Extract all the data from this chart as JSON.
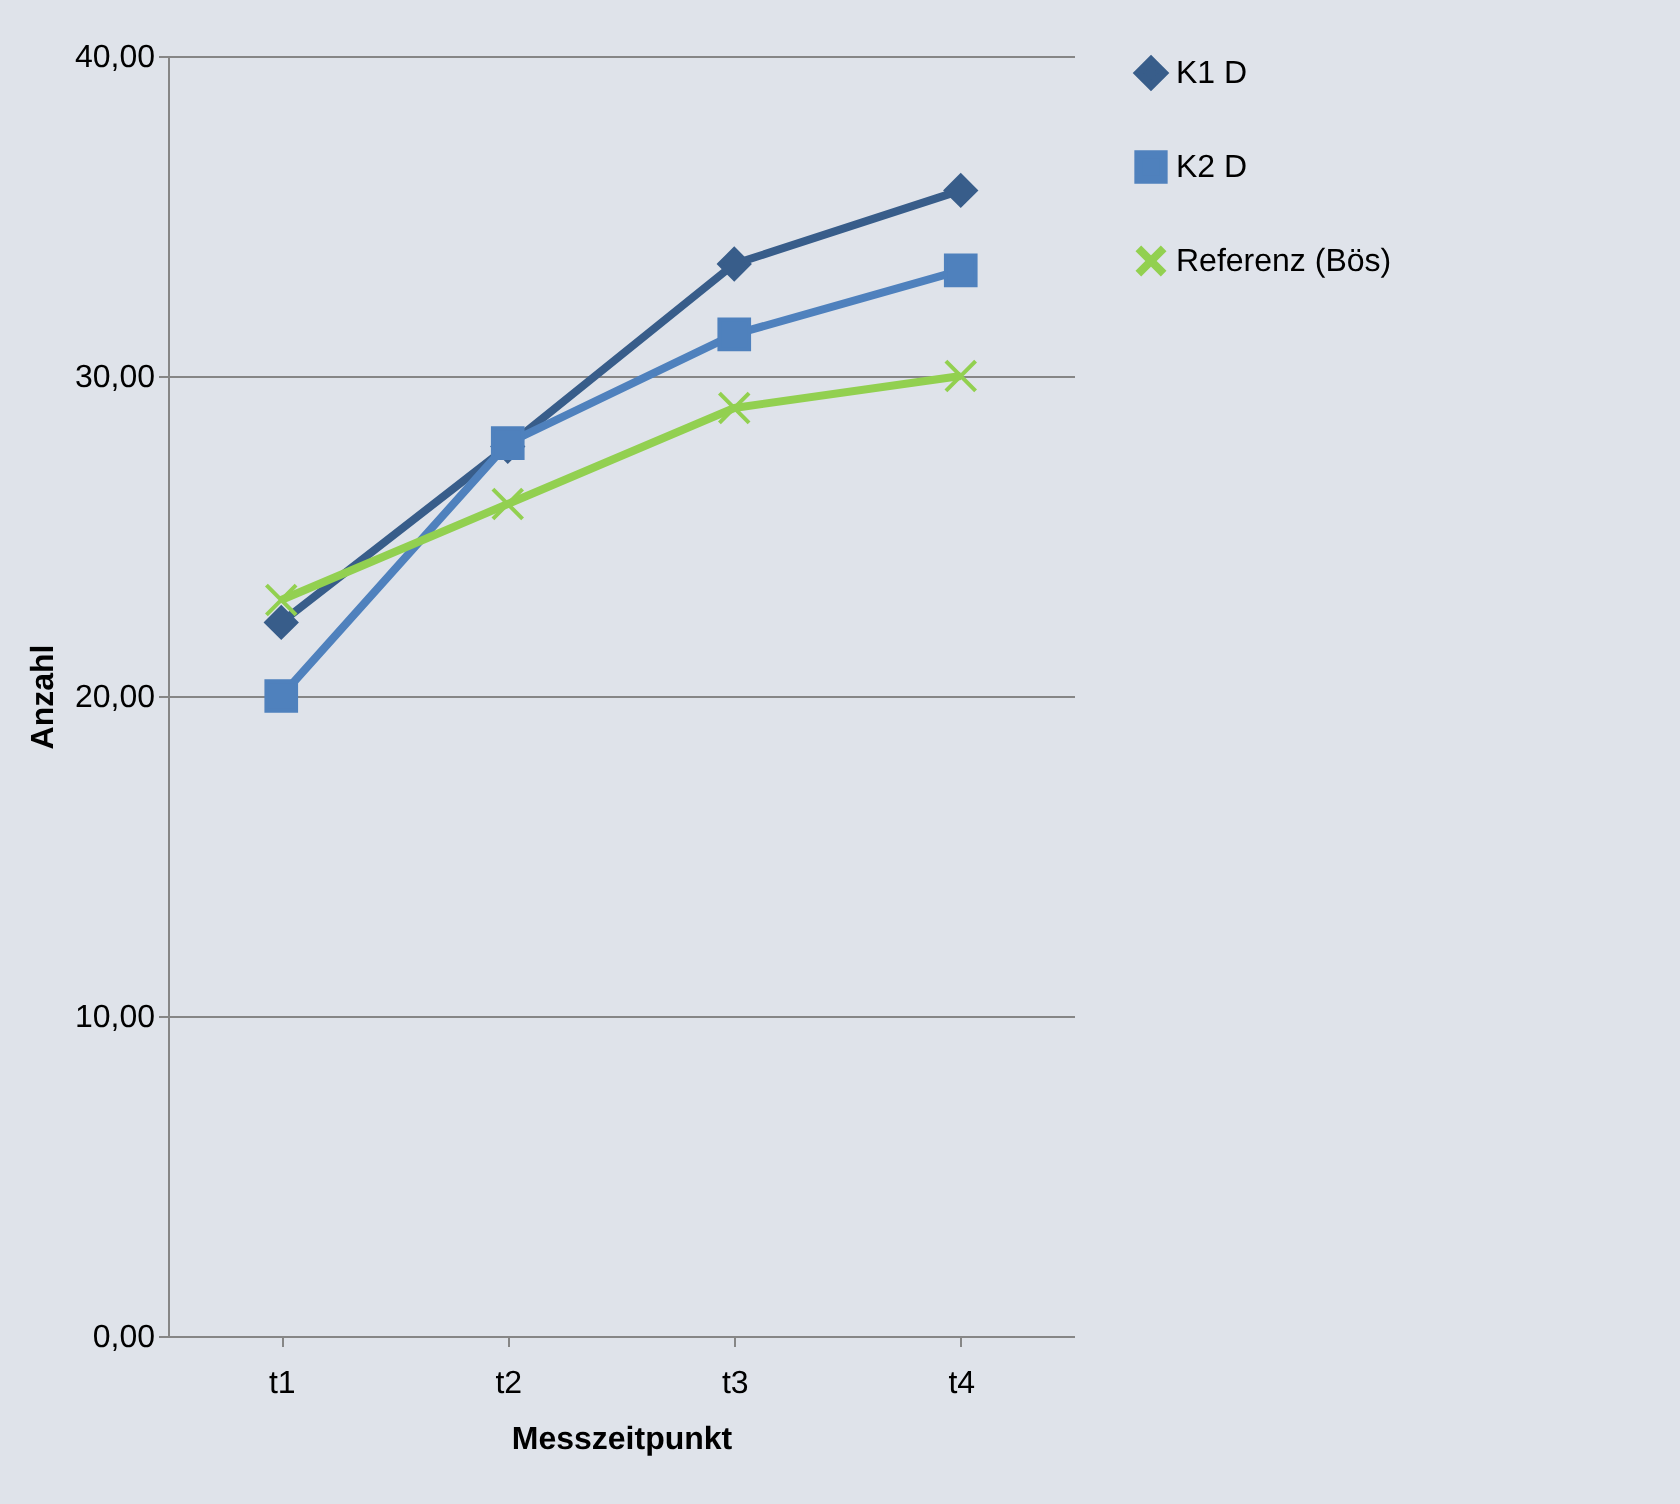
{
  "chart_data": {
    "type": "line",
    "xlabel": "Messzeitpunkt",
    "ylabel": "Anzahl",
    "categories": [
      "t1",
      "t2",
      "t3",
      "t4"
    ],
    "series": [
      {
        "name": "K1 D",
        "color": "#385d8a",
        "marker": "diamond",
        "values": [
          22.3,
          27.8,
          33.5,
          35.8
        ]
      },
      {
        "name": "K2 D",
        "color": "#4f81bd",
        "marker": "square",
        "values": [
          20.0,
          27.9,
          31.3,
          33.3
        ]
      },
      {
        "name": "Referenz (Bös)",
        "color": "#92d050",
        "marker": "cross",
        "values": [
          23.0,
          26.0,
          29.0,
          30.0
        ]
      }
    ],
    "ylim": [
      0,
      40
    ],
    "yticks": [
      {
        "value": 0,
        "label": "0,00"
      },
      {
        "value": 10,
        "label": "10,00"
      },
      {
        "value": 20,
        "label": "20,00"
      },
      {
        "value": 30,
        "label": "30,00"
      },
      {
        "value": 40,
        "label": "40,00"
      }
    ],
    "grid": "y",
    "legend": "right",
    "line_style": "solid"
  }
}
